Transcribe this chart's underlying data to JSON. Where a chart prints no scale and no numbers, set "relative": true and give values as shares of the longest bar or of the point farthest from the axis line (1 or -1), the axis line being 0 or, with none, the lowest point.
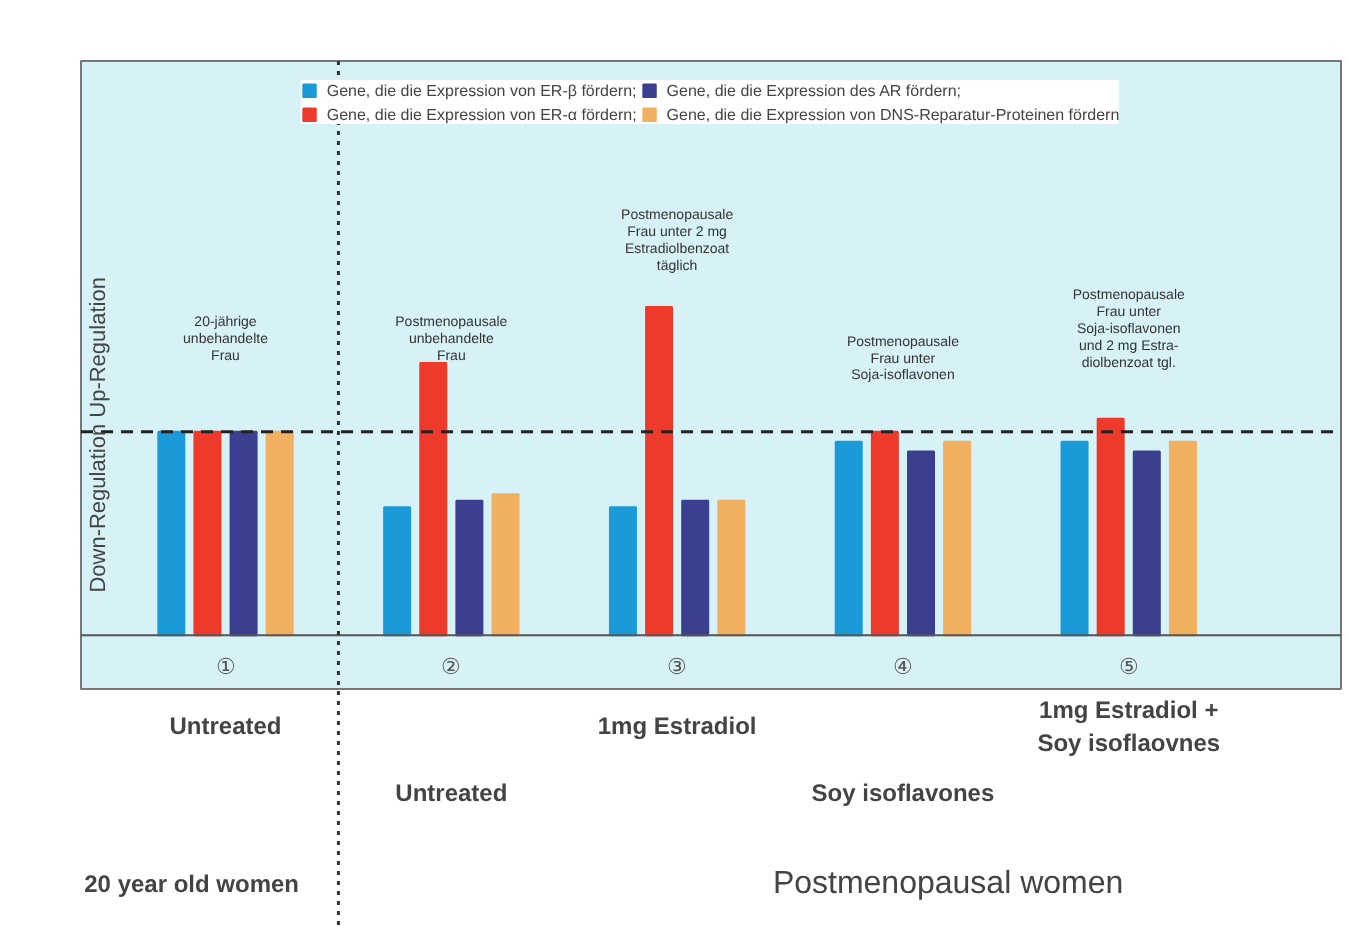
{
  "chart_data": {
    "type": "bar",
    "relative": true,
    "ylabel": "Down-Regulation  Up-Regulation",
    "categories": [
      "①",
      "②",
      "③",
      "④",
      "⑤"
    ],
    "series": [
      {
        "name": "Gene, die die Expression von ER-β fördern;",
        "color": "#1a9ad6",
        "values": [
          0.62,
          0.39,
          0.39,
          0.59,
          0.59
        ]
      },
      {
        "name": "Gene, die die Expression von ER-α fördern;",
        "color": "#ee3a2a",
        "values": [
          0.62,
          0.83,
          1,
          0.62,
          0.66
        ]
      },
      {
        "name": "Gene, die die Expression des AR fördern;",
        "color": "#3a3f8f",
        "values": [
          0.62,
          0.41,
          0.41,
          0.56,
          0.56
        ]
      },
      {
        "name": "Gene, die die Expression von DNS-Reparatur-Proteinen fördern",
        "color": "#f0b060",
        "values": [
          0.62,
          0.43,
          0.41,
          0.59,
          0.59
        ]
      }
    ],
    "ref_lines": [
      {
        "axis": "y",
        "value": 0.62,
        "line_style": "dashed",
        "color": "#222222"
      }
    ],
    "annotations": [
      "20-jährige\nunbehandelte\nFrau",
      "Postmenopausale\nunbehandelte\nFrau",
      "Postmenopausale\nFrau unter 2 mg\nEstradiolbenzoat\ntäglich",
      "Postmenopausale\nFrau unter\nSoja-isoflavonen",
      "Postmenopausale\nFrau unter\nSoja-isoflavonen\nund 2 mg Estra-\ndiolbenzoat tgl.",
      "Untreated",
      "1mg Estradiol",
      "1mg Estradiol +\nSoy isoflaovnes",
      "Untreated",
      "Soy isoflavones",
      "20 year old women",
      "Postmenopausal women"
    ],
    "legend": "top",
    "grid": false
  }
}
